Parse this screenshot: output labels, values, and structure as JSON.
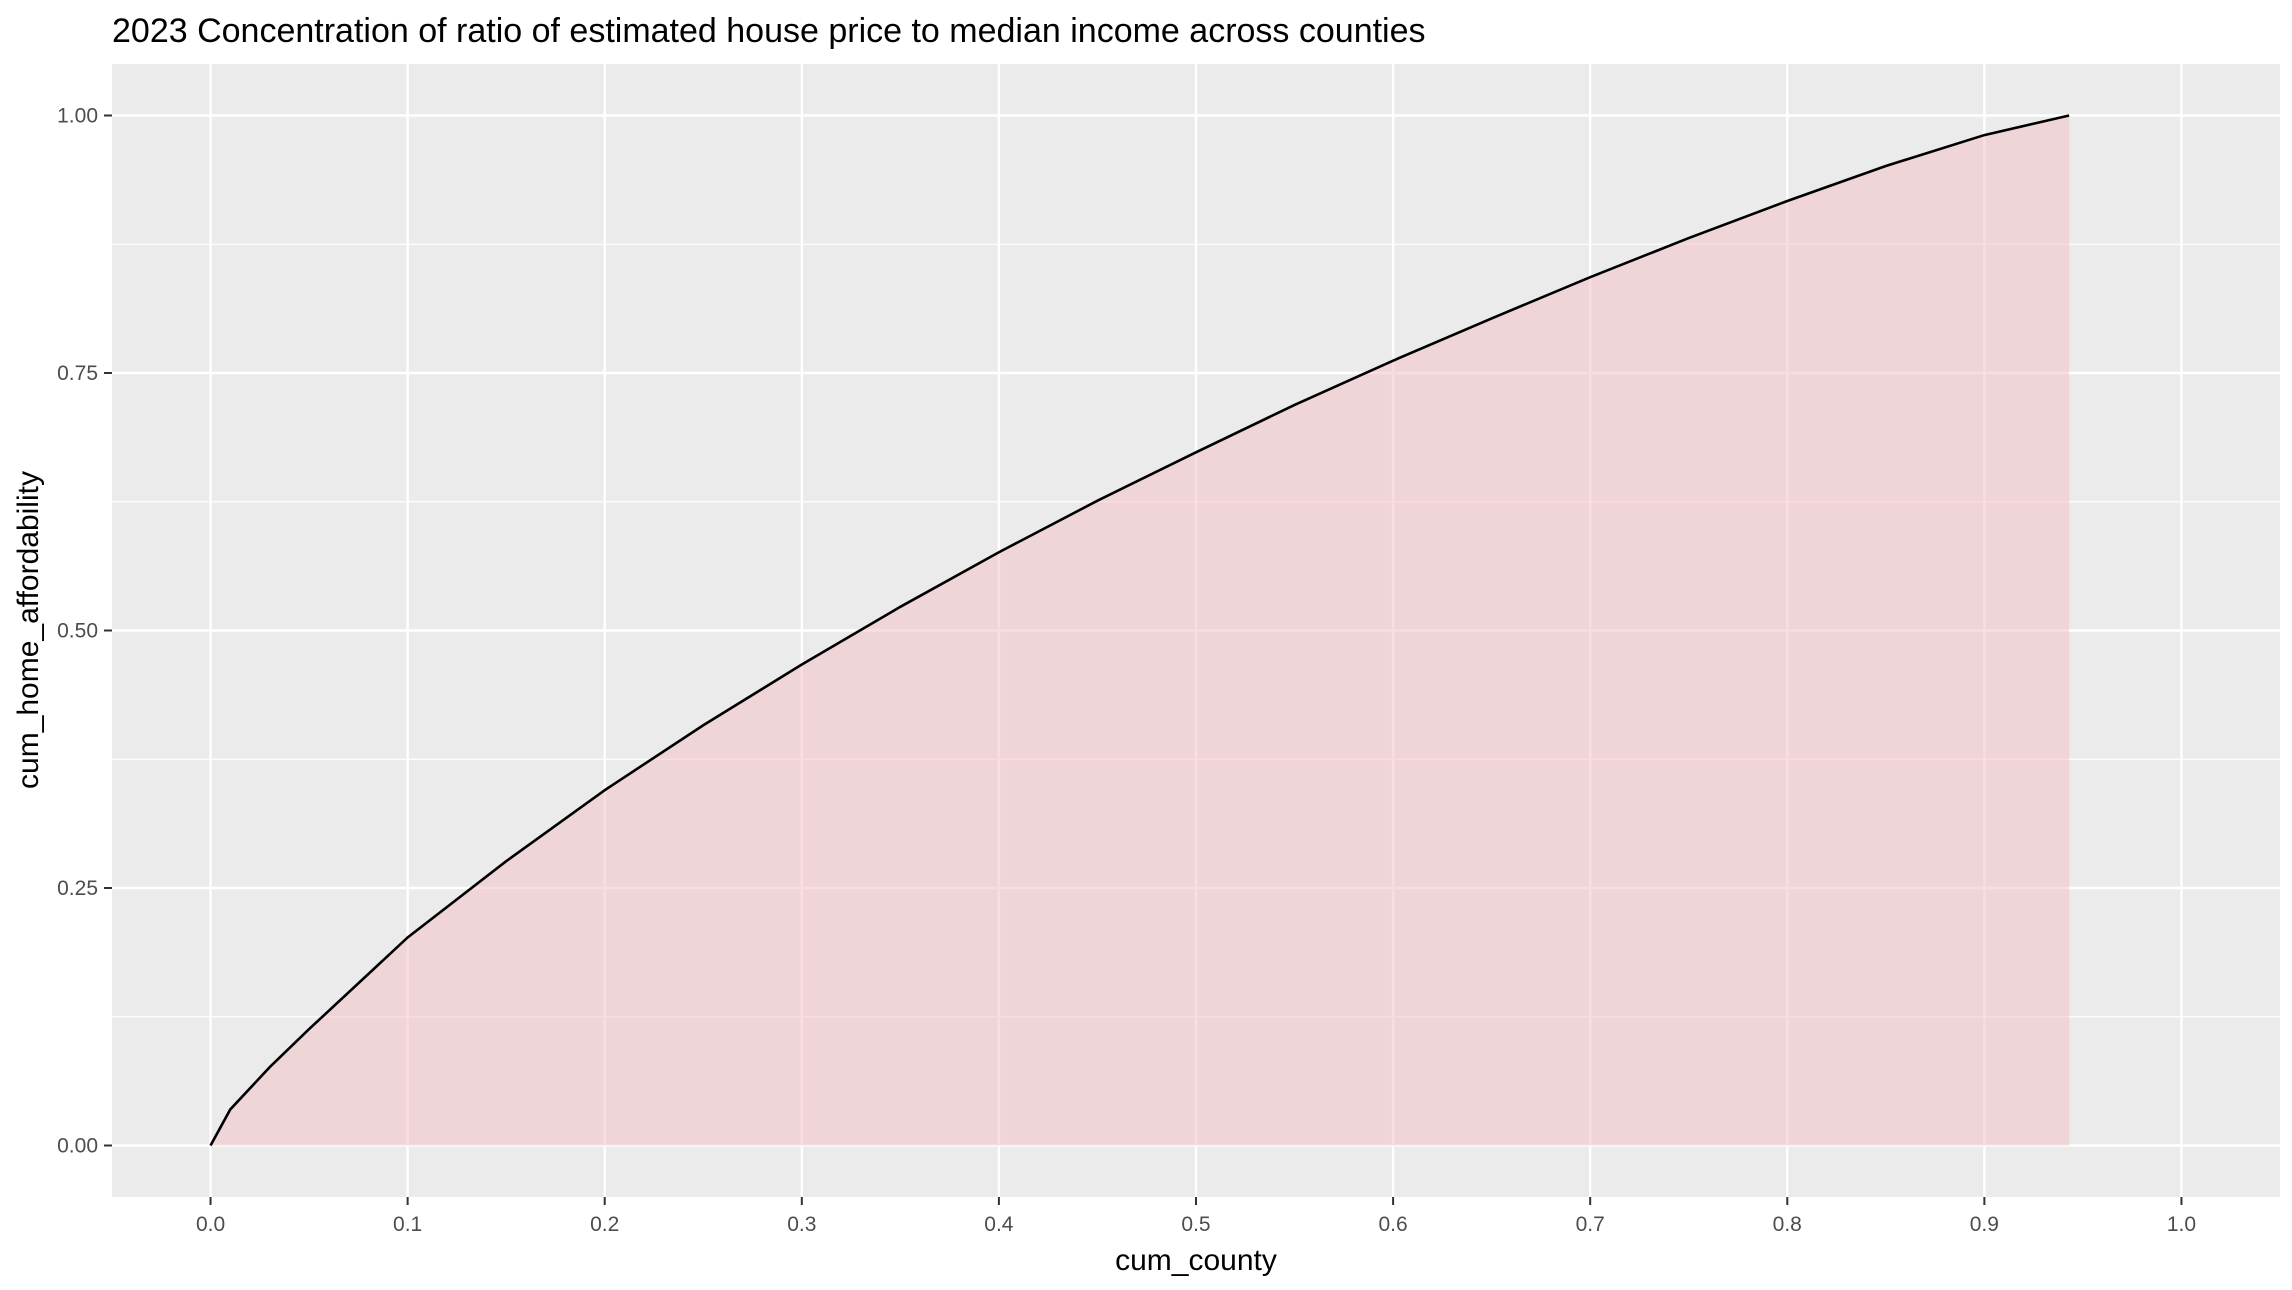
{
  "chart_data": {
    "type": "area",
    "title": "2023 Concentration of ratio of estimated house price to median income across counties",
    "xlabel": "cum_county",
    "ylabel": "cum_home_affordability",
    "xlim": [
      -0.05,
      1.05
    ],
    "ylim": [
      -0.05,
      1.05
    ],
    "x_ticks": [
      0.0,
      0.1,
      0.2,
      0.3,
      0.4,
      0.5,
      0.6,
      0.7,
      0.8,
      0.9,
      1.0
    ],
    "x_tick_labels": [
      "0.0",
      "0.1",
      "0.2",
      "0.3",
      "0.4",
      "0.5",
      "0.6",
      "0.7",
      "0.8",
      "0.9",
      "1.0"
    ],
    "y_ticks": [
      0.0,
      0.25,
      0.5,
      0.75,
      1.0
    ],
    "y_tick_labels": [
      "0.00",
      "0.25",
      "0.50",
      "0.75",
      "1.00"
    ],
    "grid": true,
    "legend": "none",
    "colors": {
      "panel_background": "#ebebeb",
      "grid_line": "#ffffff",
      "area_fill": "#f4c3c8",
      "line": "#000000"
    },
    "series": [
      {
        "x": [
          0.0,
          0.01,
          0.03,
          0.05,
          0.1,
          0.15,
          0.2,
          0.25,
          0.3,
          0.35,
          0.4,
          0.45,
          0.5,
          0.55,
          0.6,
          0.65,
          0.7,
          0.75,
          0.8,
          0.85,
          0.9,
          0.943
        ],
        "y": [
          0.0,
          0.035,
          0.076,
          0.113,
          0.202,
          0.276,
          0.345,
          0.408,
          0.467,
          0.523,
          0.576,
          0.626,
          0.673,
          0.719,
          0.762,
          0.803,
          0.843,
          0.881,
          0.917,
          0.951,
          0.981,
          1.0
        ]
      }
    ]
  }
}
